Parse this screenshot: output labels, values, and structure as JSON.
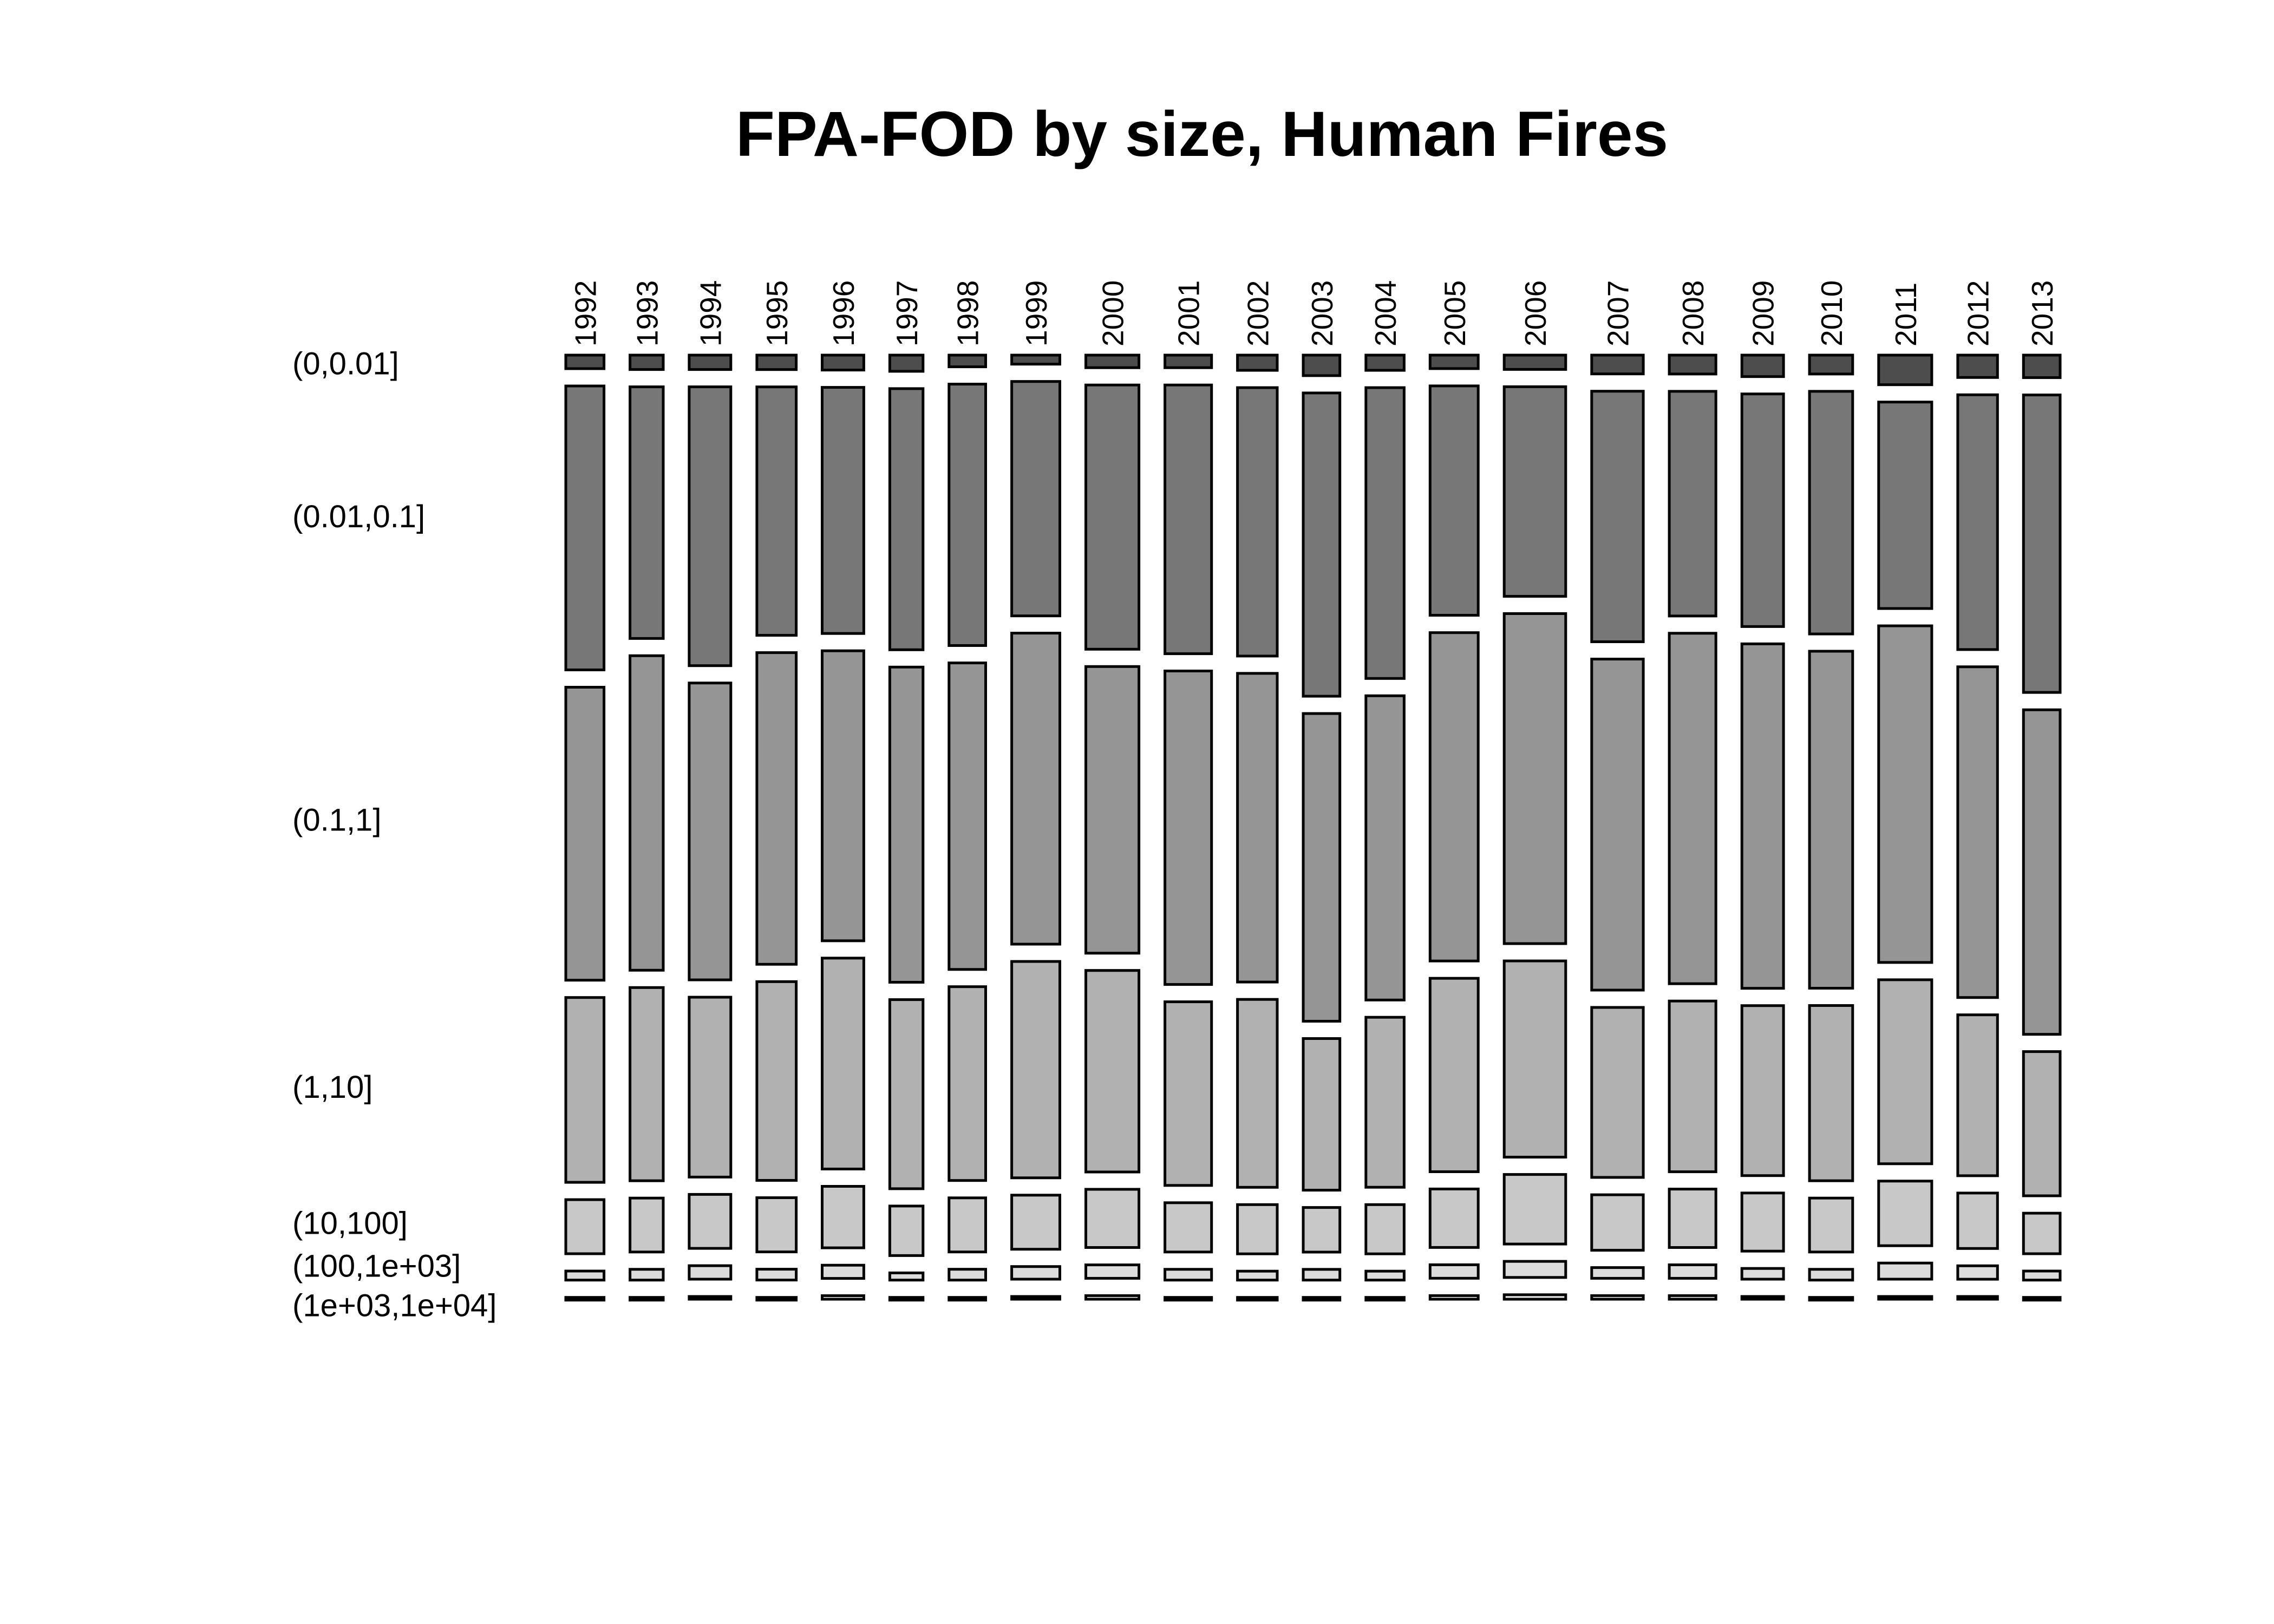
{
  "chart_data": {
    "type": "mosaic",
    "title": "FPA-FOD by size, Human Fires",
    "categories": [
      "1992",
      "1993",
      "1994",
      "1995",
      "1996",
      "1997",
      "1998",
      "1999",
      "2000",
      "2001",
      "2002",
      "2003",
      "2004",
      "2005",
      "2006",
      "2007",
      "2008",
      "2009",
      "2010",
      "2011",
      "2012",
      "2013"
    ],
    "column_widths": [
      1.0,
      0.87,
      1.09,
      1.03,
      1.09,
      0.87,
      0.96,
      1.26,
      1.39,
      1.22,
      1.04,
      0.96,
      1.0,
      1.26,
      1.61,
      1.35,
      1.22,
      1.09,
      1.13,
      1.39,
      1.04,
      0.96
    ],
    "series": [
      {
        "name": "(0,0.01]",
        "color": "#4d4d4d",
        "values": [
          0.015,
          0.016,
          0.016,
          0.016,
          0.017,
          0.018,
          0.013,
          0.01,
          0.014,
          0.014,
          0.017,
          0.023,
          0.017,
          0.015,
          0.016,
          0.021,
          0.021,
          0.024,
          0.021,
          0.033,
          0.025,
          0.025
        ]
      },
      {
        "name": "(0.01,0.1]",
        "color": "#777777",
        "values": [
          0.315,
          0.28,
          0.31,
          0.275,
          0.28,
          0.29,
          0.29,
          0.26,
          0.295,
          0.3,
          0.3,
          0.34,
          0.325,
          0.255,
          0.235,
          0.28,
          0.25,
          0.26,
          0.27,
          0.23,
          0.285,
          0.33
        ]
      },
      {
        "name": "(0.1,1]",
        "color": "#959595",
        "values": [
          0.325,
          0.35,
          0.33,
          0.345,
          0.33,
          0.35,
          0.34,
          0.345,
          0.32,
          0.35,
          0.345,
          0.345,
          0.34,
          0.365,
          0.37,
          0.37,
          0.39,
          0.385,
          0.375,
          0.375,
          0.37,
          0.36
        ]
      },
      {
        "name": "(1,10]",
        "color": "#b1b1b1",
        "values": [
          0.205,
          0.215,
          0.2,
          0.22,
          0.24,
          0.21,
          0.215,
          0.24,
          0.225,
          0.205,
          0.21,
          0.17,
          0.19,
          0.215,
          0.22,
          0.19,
          0.19,
          0.19,
          0.195,
          0.205,
          0.18,
          0.16
        ]
      },
      {
        "name": "(10,100]",
        "color": "#c8c8c8",
        "values": [
          0.06,
          0.06,
          0.06,
          0.06,
          0.07,
          0.055,
          0.06,
          0.06,
          0.065,
          0.055,
          0.055,
          0.05,
          0.055,
          0.065,
          0.078,
          0.062,
          0.065,
          0.065,
          0.06,
          0.072,
          0.062,
          0.045
        ]
      },
      {
        "name": "(100,1e+03]",
        "color": "#dcdcdc",
        "values": [
          0.01,
          0.012,
          0.015,
          0.012,
          0.015,
          0.008,
          0.012,
          0.014,
          0.015,
          0.012,
          0.01,
          0.012,
          0.01,
          0.015,
          0.018,
          0.012,
          0.015,
          0.012,
          0.012,
          0.018,
          0.015,
          0.01
        ]
      },
      {
        "name": "(1e+03,1e+04]",
        "color": "#ebebeb",
        "values": [
          0.002,
          0.002,
          0.003,
          0.002,
          0.004,
          0.002,
          0.002,
          0.003,
          0.004,
          0.002,
          0.002,
          0.002,
          0.002,
          0.004,
          0.005,
          0.004,
          0.004,
          0.003,
          0.002,
          0.003,
          0.003,
          0.002
        ]
      }
    ],
    "xlabel": "",
    "ylabel": "",
    "grid": false,
    "legend": "none"
  }
}
